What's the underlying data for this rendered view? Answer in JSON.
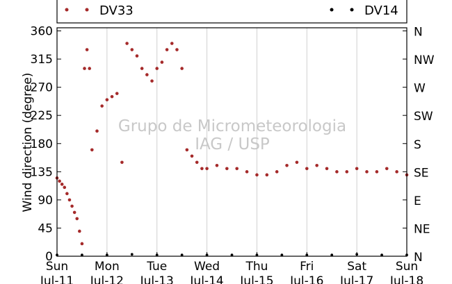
{
  "chart_data": {
    "type": "scatter",
    "ylabel": "Wind direction (degree)",
    "ylim": [
      0,
      365
    ],
    "xlim": [
      0,
      7
    ],
    "grid": "vertical",
    "legend_position": "top",
    "y_ticks": [
      0,
      45,
      90,
      135,
      180,
      225,
      270,
      315,
      360
    ],
    "y_tick_labels": [
      "0",
      "45",
      "90",
      "135",
      "180",
      "225",
      "270",
      "315",
      "360"
    ],
    "x_ticks": [
      {
        "day": "Sun",
        "date": "Jul-11"
      },
      {
        "day": "Mon",
        "date": "Jul-12"
      },
      {
        "day": "Tue",
        "date": "Jul-13"
      },
      {
        "day": "Wed",
        "date": "Jul-14"
      },
      {
        "day": "Thu",
        "date": "Jul-15"
      },
      {
        "day": "Fri",
        "date": "Jul-16"
      },
      {
        "day": "Sat",
        "date": "Jul-17"
      },
      {
        "day": "Sun",
        "date": "Jul-18"
      }
    ],
    "right_axis": [
      {
        "label": "N",
        "value": 360
      },
      {
        "label": "NW",
        "value": 315
      },
      {
        "label": "W",
        "value": 270
      },
      {
        "label": "SW",
        "value": 225
      },
      {
        "label": "S",
        "value": 180
      },
      {
        "label": "SE",
        "value": 135
      },
      {
        "label": "E",
        "value": 90
      },
      {
        "label": "NE",
        "value": 45
      },
      {
        "label": "N",
        "value": 0
      }
    ],
    "watermark": [
      "Grupo de Micrometeorologia",
      "IAG / USP"
    ],
    "series": [
      {
        "name": "DV33",
        "color": "#a52a2a",
        "points": [
          [
            0.0,
            125
          ],
          [
            0.05,
            120
          ],
          [
            0.1,
            115
          ],
          [
            0.15,
            110
          ],
          [
            0.2,
            100
          ],
          [
            0.25,
            90
          ],
          [
            0.3,
            80
          ],
          [
            0.35,
            70
          ],
          [
            0.4,
            60
          ],
          [
            0.45,
            40
          ],
          [
            0.5,
            20
          ],
          [
            0.55,
            300
          ],
          [
            0.6,
            330
          ],
          [
            0.65,
            300
          ],
          [
            0.7,
            170
          ],
          [
            0.8,
            200
          ],
          [
            0.9,
            240
          ],
          [
            1.0,
            250
          ],
          [
            1.1,
            255
          ],
          [
            1.2,
            260
          ],
          [
            1.3,
            150
          ],
          [
            1.4,
            340
          ],
          [
            1.5,
            330
          ],
          [
            1.6,
            320
          ],
          [
            1.7,
            300
          ],
          [
            1.8,
            290
          ],
          [
            1.9,
            280
          ],
          [
            2.0,
            300
          ],
          [
            2.1,
            310
          ],
          [
            2.2,
            330
          ],
          [
            2.3,
            340
          ],
          [
            2.4,
            330
          ],
          [
            2.5,
            300
          ],
          [
            2.6,
            170
          ],
          [
            2.7,
            160
          ],
          [
            2.8,
            150
          ],
          [
            2.9,
            140
          ],
          [
            3.0,
            140
          ],
          [
            3.2,
            145
          ],
          [
            3.4,
            140
          ],
          [
            3.6,
            140
          ],
          [
            3.8,
            135
          ],
          [
            4.0,
            130
          ],
          [
            4.2,
            130
          ],
          [
            4.4,
            135
          ],
          [
            4.6,
            145
          ],
          [
            4.8,
            150
          ],
          [
            5.0,
            140
          ],
          [
            5.2,
            145
          ],
          [
            5.4,
            140
          ],
          [
            5.6,
            135
          ],
          [
            5.8,
            135
          ],
          [
            6.0,
            140
          ],
          [
            6.2,
            135
          ],
          [
            6.4,
            135
          ],
          [
            6.6,
            140
          ],
          [
            6.8,
            135
          ],
          [
            7.0,
            130
          ]
        ]
      },
      {
        "name": "DV14",
        "color": "#000000",
        "points": [
          [
            0.0,
            2
          ],
          [
            0.5,
            2
          ],
          [
            1.0,
            2
          ],
          [
            1.5,
            3
          ],
          [
            2.0,
            2
          ],
          [
            2.5,
            2
          ],
          [
            3.0,
            2
          ],
          [
            3.5,
            2
          ],
          [
            4.0,
            2
          ],
          [
            4.5,
            2
          ],
          [
            5.0,
            2
          ],
          [
            5.5,
            2
          ],
          [
            6.0,
            3
          ],
          [
            6.5,
            2
          ],
          [
            7.0,
            2
          ]
        ]
      }
    ]
  }
}
